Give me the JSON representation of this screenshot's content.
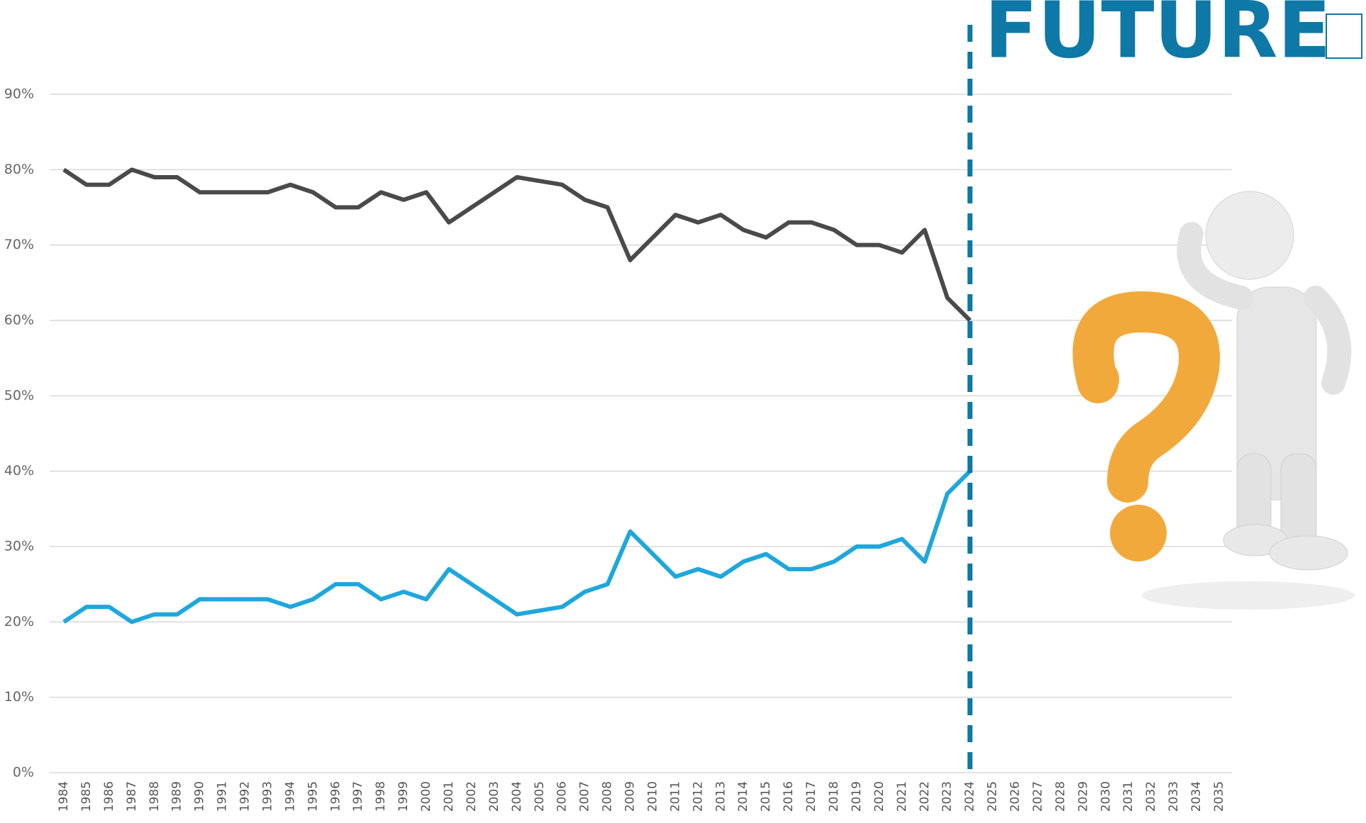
{
  "chart_data": {
    "type": "line",
    "headline": "FUTURE",
    "categories": [
      "1984",
      "1985",
      "1986",
      "1987",
      "1988",
      "1989",
      "1990",
      "1991",
      "1992",
      "1993",
      "1994",
      "1995",
      "1996",
      "1997",
      "1998",
      "1999",
      "2000",
      "2001",
      "2002",
      "2003",
      "2004",
      "2005",
      "2006",
      "2007",
      "2008",
      "2009",
      "2010",
      "2011",
      "2012",
      "2013",
      "2014",
      "2015",
      "2016",
      "2017",
      "2018",
      "2019",
      "2020",
      "2021",
      "2022",
      "2023",
      "2024",
      "2025",
      "2026",
      "2027",
      "2028",
      "2029",
      "2030",
      "2031",
      "2032",
      "2033",
      "2034",
      "2035"
    ],
    "series": [
      {
        "color": "#4a4a4a",
        "values": [
          80,
          78,
          78,
          80,
          79,
          79,
          77,
          77,
          77,
          77,
          78,
          77,
          75,
          75,
          77,
          76,
          77,
          73,
          75,
          77,
          79,
          78.5,
          78,
          76,
          75,
          68,
          71,
          74,
          73,
          74,
          72,
          71,
          73,
          73,
          72,
          70,
          70,
          69,
          72,
          63,
          60,
          null,
          null,
          null,
          null,
          null,
          null,
          null,
          null,
          null,
          null,
          null
        ]
      },
      {
        "color": "#1ea7dc",
        "values": [
          20,
          22,
          22,
          20,
          21,
          21,
          23,
          23,
          23,
          23,
          22,
          23,
          25,
          25,
          23,
          24,
          23,
          27,
          25,
          23,
          21,
          21.5,
          22,
          24,
          25,
          32,
          29,
          26,
          27,
          26,
          28,
          29,
          27,
          27,
          28,
          30,
          30,
          31,
          28,
          37,
          40,
          null,
          null,
          null,
          null,
          null,
          null,
          null,
          null,
          null,
          null,
          null
        ]
      }
    ],
    "divider_category": "2024",
    "divider_color": "#0e78a6",
    "ylim": [
      0,
      90
    ],
    "yticks": [
      {
        "value": 0,
        "label": "0%"
      },
      {
        "value": 10,
        "label": "10%"
      },
      {
        "value": 20,
        "label": "20%"
      },
      {
        "value": 30,
        "label": "30%"
      },
      {
        "value": 40,
        "label": "40%"
      },
      {
        "value": 50,
        "label": "50%"
      },
      {
        "value": 60,
        "label": "60%"
      },
      {
        "value": 70,
        "label": "70%"
      },
      {
        "value": 80,
        "label": "80%"
      },
      {
        "value": 90,
        "label": "90%"
      }
    ],
    "grid": true
  }
}
